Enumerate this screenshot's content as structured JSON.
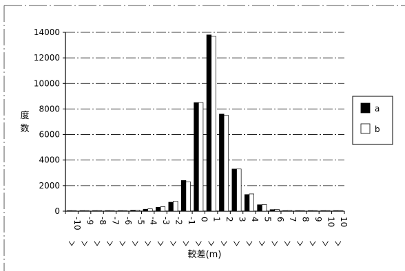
{
  "chart_data": {
    "type": "bar",
    "categories": [
      "-10",
      "-9",
      "-8",
      "-7",
      "-6",
      "-5",
      "-4",
      "-3",
      "-2",
      "-1",
      "0",
      "1",
      "2",
      "3",
      "4",
      "5",
      "6",
      "7",
      "8",
      "9",
      "10",
      "10"
    ],
    "series": [
      {
        "name": "a",
        "color": "#000000",
        "values": [
          10,
          10,
          10,
          20,
          30,
          70,
          150,
          300,
          700,
          2400,
          8500,
          13800,
          7600,
          3300,
          1300,
          500,
          120,
          40,
          15,
          10,
          5,
          5
        ]
      },
      {
        "name": "b",
        "color": "#ffffff",
        "values": [
          10,
          10,
          10,
          20,
          30,
          80,
          180,
          350,
          780,
          2300,
          8500,
          13700,
          7500,
          3300,
          1350,
          520,
          140,
          50,
          20,
          10,
          5,
          5
        ]
      }
    ],
    "xlabel": "較差(m)",
    "ylabel": "度数",
    "ylim": [
      0,
      14000
    ],
    "yticks": [
      0,
      2000,
      4000,
      6000,
      8000,
      10000,
      12000,
      14000
    ],
    "grid": true,
    "legend": "right"
  }
}
